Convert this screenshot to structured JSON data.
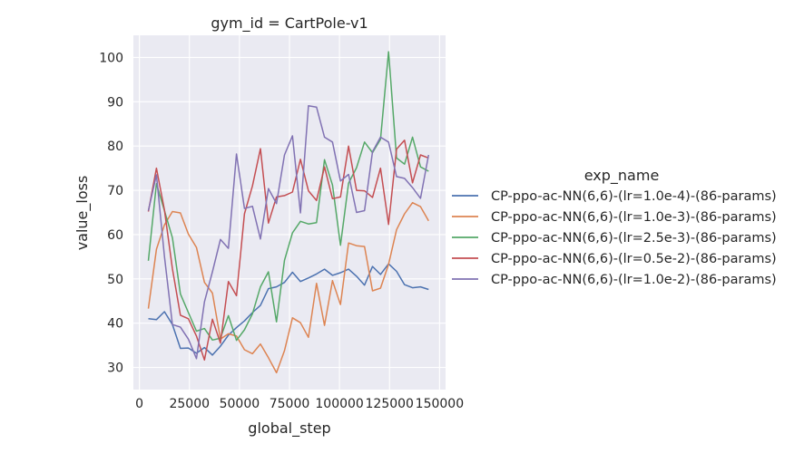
{
  "chart_data": {
    "type": "line",
    "title": "gym_id = CartPole-v1",
    "xlabel": "global_step",
    "ylabel": "value_loss",
    "xlim": [
      -3000,
      153000
    ],
    "ylim": [
      25,
      105
    ],
    "x_ticks": [
      0,
      25000,
      50000,
      75000,
      100000,
      125000,
      150000
    ],
    "x_tick_labels": [
      "0",
      "25000",
      "50000",
      "75000",
      "100000",
      "125000",
      "150000"
    ],
    "y_ticks": [
      30,
      40,
      50,
      60,
      70,
      80,
      90,
      100
    ],
    "y_tick_labels": [
      "30",
      "40",
      "50",
      "60",
      "70",
      "80",
      "90",
      "100"
    ],
    "grid": true,
    "legend_title": "exp_name",
    "legend_position": "right",
    "x": [
      4500,
      8500,
      12500,
      16500,
      20500,
      24500,
      28500,
      32500,
      36500,
      40500,
      44500,
      48500,
      52500,
      56500,
      60500,
      64500,
      68500,
      72500,
      76500,
      80500,
      84500,
      88500,
      92500,
      96500,
      100500,
      104500,
      108500,
      112500,
      116500,
      120500,
      124500,
      128500,
      132500,
      136500,
      140500,
      144500,
      148500
    ],
    "series": [
      {
        "name": "CP-ppo-ac-NN(6,6)-(lr=1.0e-4)-(86-params)",
        "color": "#4c72b0",
        "values": [
          41.0,
          40.8,
          42.6,
          39.7,
          34.3,
          34.4,
          33.2,
          34.5,
          32.8,
          34.8,
          37.3,
          39.0,
          40.5,
          42.4,
          44.0,
          47.8,
          48.2,
          49.2,
          51.5,
          49.4,
          50.2,
          51.1,
          52.2,
          50.8,
          51.4,
          52.2,
          50.6,
          48.6,
          52.8,
          51.0,
          53.4,
          51.7,
          48.7,
          48.0,
          48.2,
          47.6,
          null
        ]
      },
      {
        "name": "CP-ppo-ac-NN(6,6)-(lr=1.0e-3)-(86-params)",
        "color": "#dd8452",
        "values": [
          43.3,
          56.7,
          62.2,
          65.2,
          64.9,
          60.1,
          57.1,
          49.2,
          46.8,
          36.4,
          37.6,
          37.1,
          34.0,
          33.1,
          35.3,
          32.2,
          28.8,
          33.8,
          41.2,
          40.1,
          36.8,
          49.0,
          39.5,
          49.6,
          44.2,
          58.1,
          57.5,
          57.3,
          47.3,
          47.9,
          53.3,
          61.1,
          64.7,
          67.2,
          66.3,
          63.1,
          null
        ]
      },
      {
        "name": "CP-ppo-ac-NN(6,6)-(lr=2.5e-3)-(86-params)",
        "color": "#55a868",
        "values": [
          54.1,
          71.5,
          65.4,
          59.3,
          46.6,
          42.4,
          38.2,
          38.8,
          36.2,
          36.6,
          41.7,
          36.1,
          38.5,
          42.1,
          48.2,
          51.6,
          40.3,
          54.2,
          60.4,
          63.0,
          62.4,
          62.7,
          76.9,
          71.2,
          57.6,
          71.6,
          75.1,
          80.9,
          78.5,
          81.5,
          101.3,
          77.3,
          75.9,
          82.0,
          75.3,
          74.3,
          null
        ]
      },
      {
        "name": "CP-ppo-ac-NN(6,6)-(lr=0.5e-2)-(86-params)",
        "color": "#c44e52",
        "values": [
          65.2,
          75.0,
          65.6,
          52.3,
          41.8,
          41.0,
          37.1,
          31.7,
          40.9,
          35.5,
          49.4,
          46.2,
          64.7,
          71.0,
          79.4,
          62.6,
          68.5,
          68.8,
          69.6,
          77.0,
          69.9,
          67.7,
          75.3,
          68.1,
          68.5,
          80.0,
          70.0,
          69.9,
          68.4,
          75.0,
          62.3,
          79.3,
          81.3,
          71.7,
          78.0,
          77.3,
          null
        ]
      },
      {
        "name": "CP-ppo-ac-NN(6,6)-(lr=1.0e-2)-(86-params)",
        "color": "#8172b3",
        "values": [
          65.4,
          73.5,
          55.1,
          39.7,
          39.1,
          36.4,
          32.0,
          44.8,
          51.6,
          58.9,
          56.9,
          78.2,
          65.9,
          66.4,
          59.0,
          70.4,
          67.0,
          78.0,
          82.3,
          64.9,
          89.1,
          88.8,
          82.0,
          80.9,
          72.1,
          73.6,
          65.0,
          65.4,
          78.7,
          82.0,
          80.9,
          73.1,
          72.7,
          70.6,
          68.2,
          78.0,
          null
        ]
      }
    ]
  }
}
